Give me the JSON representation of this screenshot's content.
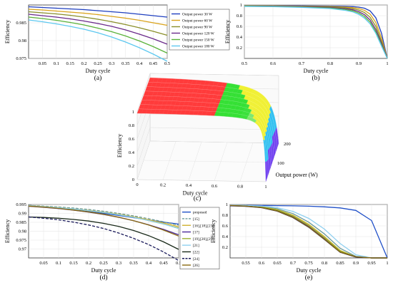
{
  "panel_labels": [
    "(a)",
    "(b)",
    "(c)",
    "(d)",
    "(e)"
  ],
  "chart_data": [
    {
      "panel": "(a)",
      "type": "line",
      "xlabel": "Duty cycle",
      "ylabel": "Efficiency",
      "xlim": [
        0.0,
        0.5
      ],
      "ylim": [
        0.975,
        0.99
      ],
      "xticks": [
        "0.05",
        "0.1",
        "0.15",
        "0.2",
        "0.25",
        "0.3",
        "0.35",
        "0.4",
        "0.45",
        "0.5"
      ],
      "yticks": [
        "0.975",
        "0.98",
        "0.985"
      ],
      "legend": "right",
      "x": [
        0,
        0.05,
        0.1,
        0.15,
        0.2,
        0.25,
        0.3,
        0.35,
        0.4,
        0.45,
        0.5
      ],
      "series": [
        {
          "name": "Output power 30 W",
          "color": "#1f3fbf",
          "values": [
            0.9895,
            0.9893,
            0.9891,
            0.9889,
            0.9887,
            0.9884,
            0.9881,
            0.9878,
            0.9874,
            0.987,
            0.9866
          ]
        },
        {
          "name": "Output power 60 W",
          "color": "#d9a21a",
          "values": [
            0.9888,
            0.9886,
            0.9883,
            0.988,
            0.9877,
            0.9873,
            0.9868,
            0.9863,
            0.9857,
            0.985,
            0.9843
          ]
        },
        {
          "name": "Output power 90 W",
          "color": "#8a8f2a",
          "values": [
            0.9881,
            0.9878,
            0.9875,
            0.9871,
            0.9866,
            0.986,
            0.9853,
            0.9845,
            0.9836,
            0.9826,
            0.9815
          ]
        },
        {
          "name": "Output power 120 W",
          "color": "#6a2a8a",
          "values": [
            0.9874,
            0.987,
            0.9866,
            0.9861,
            0.9855,
            0.9848,
            0.984,
            0.983,
            0.9818,
            0.9805,
            0.979
          ]
        },
        {
          "name": "Output power 150 W",
          "color": "#5ab23a",
          "values": [
            0.9866,
            0.9862,
            0.9857,
            0.9851,
            0.9844,
            0.9835,
            0.9825,
            0.9813,
            0.9799,
            0.9783,
            0.9765
          ]
        },
        {
          "name": "Output power 180 W",
          "color": "#5ec8f0",
          "values": [
            0.9858,
            0.9853,
            0.9847,
            0.984,
            0.9832,
            0.9822,
            0.981,
            0.9796,
            0.978,
            0.9762,
            0.9742
          ]
        }
      ]
    },
    {
      "panel": "(b)",
      "type": "line",
      "xlabel": "Duty cycle",
      "ylabel": "Efficiency",
      "xlim": [
        0.5,
        1.0
      ],
      "ylim": [
        0,
        1
      ],
      "xticks": [
        "0.5",
        "0.6",
        "0.7",
        "0.8",
        "0.9",
        "1"
      ],
      "yticks": [
        "0.2",
        "0.4",
        "0.6",
        "0.8",
        "1"
      ],
      "x": [
        0.5,
        0.6,
        0.7,
        0.8,
        0.85,
        0.88,
        0.9,
        0.92,
        0.94,
        0.96,
        0.98,
        1.0
      ],
      "series": [
        {
          "name": "Output power 30 W",
          "color": "#1f3fbf",
          "values": [
            0.987,
            0.986,
            0.984,
            0.98,
            0.975,
            0.97,
            0.96,
            0.94,
            0.89,
            0.76,
            0.47,
            0.0
          ]
        },
        {
          "name": "Output power 60 W",
          "color": "#d9a21a",
          "values": [
            0.984,
            0.982,
            0.979,
            0.972,
            0.962,
            0.95,
            0.935,
            0.9,
            0.83,
            0.67,
            0.38,
            0.0
          ]
        },
        {
          "name": "Output power 90 W",
          "color": "#8a8f2a",
          "values": [
            0.982,
            0.979,
            0.974,
            0.963,
            0.948,
            0.93,
            0.905,
            0.86,
            0.77,
            0.6,
            0.32,
            0.0
          ]
        },
        {
          "name": "Output power 120 W",
          "color": "#6a2a8a",
          "values": [
            0.979,
            0.975,
            0.968,
            0.953,
            0.933,
            0.91,
            0.875,
            0.82,
            0.72,
            0.54,
            0.28,
            0.0
          ]
        },
        {
          "name": "Output power 150 W",
          "color": "#5ab23a",
          "values": [
            0.977,
            0.972,
            0.962,
            0.943,
            0.918,
            0.89,
            0.85,
            0.785,
            0.68,
            0.5,
            0.25,
            0.0
          ]
        },
        {
          "name": "Output power 180 W",
          "color": "#5ec8f0",
          "values": [
            0.974,
            0.968,
            0.956,
            0.933,
            0.903,
            0.87,
            0.825,
            0.755,
            0.645,
            0.47,
            0.23,
            0.0
          ]
        }
      ]
    },
    {
      "panel": "(c)",
      "type": "surface",
      "xlabel": "Duty cycle",
      "ylabel": "Output power (W)",
      "zlabel": "Efficiency",
      "xticks": [
        "0",
        "0.2",
        "0.4",
        "0.6",
        "0.8",
        "1"
      ],
      "yticks": [
        "100",
        "200"
      ],
      "zticks": [
        "0",
        "0.2",
        "0.4",
        "0.6",
        "0.8",
        "1"
      ],
      "xlim": [
        0,
        1
      ],
      "ylim": [
        0,
        200
      ],
      "zlim": [
        0,
        1
      ],
      "colormap": [
        "#ff3b3b",
        "#35e035",
        "#f0f030",
        "#30c0f0",
        "#7040f0"
      ]
    },
    {
      "panel": "(d)",
      "type": "line",
      "xlabel": "Duty cycle",
      "ylabel": "Efficiency",
      "xlim": [
        0.0,
        0.5
      ],
      "ylim": [
        0.965,
        0.995
      ],
      "xticks": [
        "0.05",
        "0.1",
        "0.15",
        "0.2",
        "0.25",
        "0.3",
        "0.35",
        "0.4",
        "0.45",
        "0.5"
      ],
      "yticks": [
        "0.97",
        "0.975",
        "0.98",
        "0.985",
        "0.99",
        "0.995"
      ],
      "legend": "right",
      "x": [
        0,
        0.05,
        0.1,
        0.15,
        0.2,
        0.25,
        0.3,
        0.35,
        0.4,
        0.45,
        0.5
      ],
      "series": [
        {
          "name": "proposed",
          "color": "#1f4fc8",
          "dash": false,
          "values": [
            0.9945,
            0.9938,
            0.993,
            0.992,
            0.991,
            0.99,
            0.9889,
            0.9876,
            0.9863,
            0.9851,
            0.984
          ]
        },
        {
          "name": "[15]",
          "color": "#6a9a9a",
          "dash": true,
          "values": [
            0.9945,
            0.9941,
            0.9936,
            0.993,
            0.9922,
            0.9912,
            0.99,
            0.9886,
            0.987,
            0.9853,
            0.9834
          ]
        },
        {
          "name": "[16],[18],[23]",
          "color": "#d0b030",
          "dash": false,
          "values": [
            0.9944,
            0.9939,
            0.9933,
            0.9926,
            0.9917,
            0.9907,
            0.9895,
            0.9881,
            0.9864,
            0.9846,
            0.9826
          ]
        },
        {
          "name": "[17]",
          "color": "#4a2a9a",
          "dash": false,
          "values": [
            0.994,
            0.9934,
            0.9927,
            0.9918,
            0.9907,
            0.9894,
            0.9878,
            0.9859,
            0.9836,
            0.981,
            0.978
          ]
        },
        {
          "name": "[19],[20],[25]",
          "color": "#9ab030",
          "dash": false,
          "values": [
            0.9942,
            0.9937,
            0.9931,
            0.9924,
            0.9915,
            0.9905,
            0.9893,
            0.9878,
            0.986,
            0.984,
            0.9818
          ]
        },
        {
          "name": "[21]",
          "color": "#90d0f0",
          "dash": false,
          "values": [
            0.9943,
            0.9938,
            0.9932,
            0.9925,
            0.9916,
            0.9906,
            0.9893,
            0.9878,
            0.986,
            0.984,
            0.9815
          ]
        },
        {
          "name": "[22]",
          "color": "#1a2a1a",
          "dash": false,
          "values": [
            0.988,
            0.9877,
            0.9873,
            0.9866,
            0.9857,
            0.9844,
            0.9827,
            0.9804,
            0.9775,
            0.974,
            0.9698
          ]
        },
        {
          "name": "[24]",
          "color": "#1a1a5a",
          "dash": true,
          "values": [
            0.988,
            0.9873,
            0.9864,
            0.9851,
            0.9835,
            0.9815,
            0.979,
            0.976,
            0.9725,
            0.9683,
            0.9635
          ]
        },
        {
          "name": "[26]",
          "color": "#8a6a10",
          "dash": false,
          "values": [
            0.9941,
            0.9935,
            0.9928,
            0.9919,
            0.9908,
            0.9895,
            0.9879,
            0.9859,
            0.9835,
            0.9806,
            0.9773
          ]
        }
      ]
    },
    {
      "panel": "(e)",
      "type": "line",
      "xlabel": "Duty cycle",
      "ylabel": "Efficiency",
      "xlim": [
        0.5,
        1.0
      ],
      "ylim": [
        0,
        1
      ],
      "xticks": [
        "0.55",
        "0.6",
        "0.65",
        "0.7",
        "0.75",
        "0.8",
        "0.85",
        "0.9",
        "0.95",
        "1"
      ],
      "yticks": [
        "0.2",
        "0.4",
        "0.6",
        "0.8",
        "1"
      ],
      "x": [
        0.5,
        0.55,
        0.6,
        0.65,
        0.7,
        0.75,
        0.8,
        0.85,
        0.9,
        0.95,
        1.0
      ],
      "series": [
        {
          "name": "proposed",
          "color": "#1f4fc8",
          "values": [
            0.985,
            0.984,
            0.982,
            0.979,
            0.975,
            0.968,
            0.956,
            0.936,
            0.89,
            0.7,
            0.0
          ]
        },
        {
          "name": "[15]",
          "color": "#6a9a9a",
          "values": [
            0.985,
            0.98,
            0.965,
            0.92,
            0.83,
            0.67,
            0.45,
            0.18,
            0.03,
            0.0,
            0.0
          ]
        },
        {
          "name": "[16],[18],[23]",
          "color": "#d0b030",
          "values": [
            0.984,
            0.978,
            0.96,
            0.905,
            0.8,
            0.63,
            0.4,
            0.14,
            0.02,
            0.0,
            0.0
          ]
        },
        {
          "name": "[17]",
          "color": "#4a2a9a",
          "values": [
            0.982,
            0.972,
            0.948,
            0.885,
            0.77,
            0.59,
            0.36,
            0.12,
            0.02,
            0.0,
            0.0
          ]
        },
        {
          "name": "[19],[20],[25]",
          "color": "#9ab030",
          "values": [
            0.983,
            0.975,
            0.955,
            0.897,
            0.785,
            0.61,
            0.38,
            0.13,
            0.02,
            0.0,
            0.0
          ]
        },
        {
          "name": "[21]",
          "color": "#90d0f0",
          "values": [
            0.985,
            0.982,
            0.97,
            0.94,
            0.87,
            0.74,
            0.54,
            0.27,
            0.06,
            0.0,
            0.0
          ]
        },
        {
          "name": "[22]",
          "color": "#1a2a1a",
          "values": [
            0.978,
            0.97,
            0.945,
            0.88,
            0.76,
            0.58,
            0.35,
            0.11,
            0.02,
            0.0,
            0.0
          ]
        },
        {
          "name": "[24]",
          "color": "#1a1a5a",
          "values": [
            0.975,
            0.965,
            0.94,
            0.875,
            0.755,
            0.575,
            0.345,
            0.105,
            0.015,
            0.0,
            0.0
          ]
        },
        {
          "name": "[26]",
          "color": "#8a6a10",
          "values": [
            0.981,
            0.97,
            0.944,
            0.878,
            0.76,
            0.58,
            0.35,
            0.11,
            0.02,
            0.0,
            0.0
          ]
        }
      ]
    }
  ]
}
